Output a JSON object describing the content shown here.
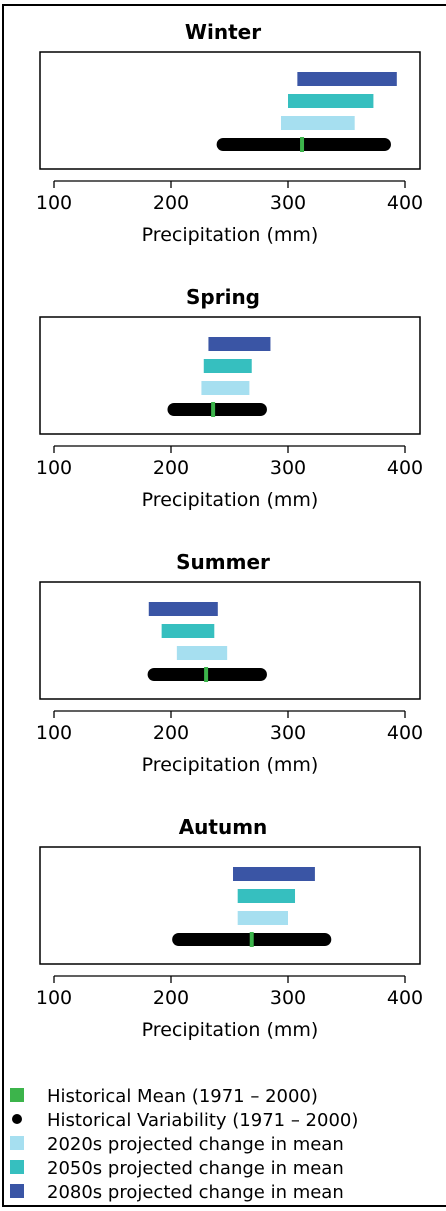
{
  "colors": {
    "historical_mean": "#3cb44b",
    "historical_variability": "#000000",
    "p2020s": "#a6dff0",
    "p2050s": "#36bfbf",
    "p2080s": "#3a55a5"
  },
  "chart_data": [
    {
      "type": "bar",
      "title": "Winter",
      "xlabel": "Precipitation (mm)",
      "xlim": [
        90,
        410
      ],
      "xticks": [
        100,
        200,
        300,
        400
      ],
      "historical_mean": 312,
      "historical_variability": [
        239,
        388
      ],
      "projections": {
        "2020s": [
          294,
          357
        ],
        "2050s": [
          300,
          373
        ],
        "2080s": [
          308,
          393
        ]
      }
    },
    {
      "type": "bar",
      "title": "Spring",
      "xlabel": "Precipitation (mm)",
      "xlim": [
        90,
        410
      ],
      "xticks": [
        100,
        200,
        300,
        400
      ],
      "historical_mean": 236,
      "historical_variability": [
        197,
        282
      ],
      "projections": {
        "2020s": [
          226,
          267
        ],
        "2050s": [
          228,
          269
        ],
        "2080s": [
          232,
          285
        ]
      }
    },
    {
      "type": "bar",
      "title": "Summer",
      "xlabel": "Precipitation (mm)",
      "xlim": [
        90,
        410
      ],
      "xticks": [
        100,
        200,
        300,
        400
      ],
      "historical_mean": 230,
      "historical_variability": [
        180,
        282
      ],
      "projections": {
        "2020s": [
          205,
          248
        ],
        "2050s": [
          192,
          237
        ],
        "2080s": [
          181,
          240
        ]
      }
    },
    {
      "type": "bar",
      "title": "Autumn",
      "xlabel": "Precipitation (mm)",
      "xlim": [
        90,
        410
      ],
      "xticks": [
        100,
        200,
        300,
        400
      ],
      "historical_mean": 269,
      "historical_variability": [
        201,
        337
      ],
      "projections": {
        "2020s": [
          257,
          300
        ],
        "2050s": [
          257,
          306
        ],
        "2080s": [
          253,
          323
        ]
      }
    }
  ],
  "legend": [
    {
      "label": "Historical Mean (1971 – 2000)",
      "marker": "square",
      "color": "#3cb44b"
    },
    {
      "label": "Historical Variability (1971 – 2000)",
      "marker": "circle",
      "color": "#000000"
    },
    {
      "label": "2020s projected change in mean",
      "marker": "square",
      "color": "#a6dff0"
    },
    {
      "label": "2050s projected change in mean",
      "marker": "square",
      "color": "#36bfbf"
    },
    {
      "label": "2080s projected change in mean",
      "marker": "square",
      "color": "#3a55a5"
    }
  ]
}
